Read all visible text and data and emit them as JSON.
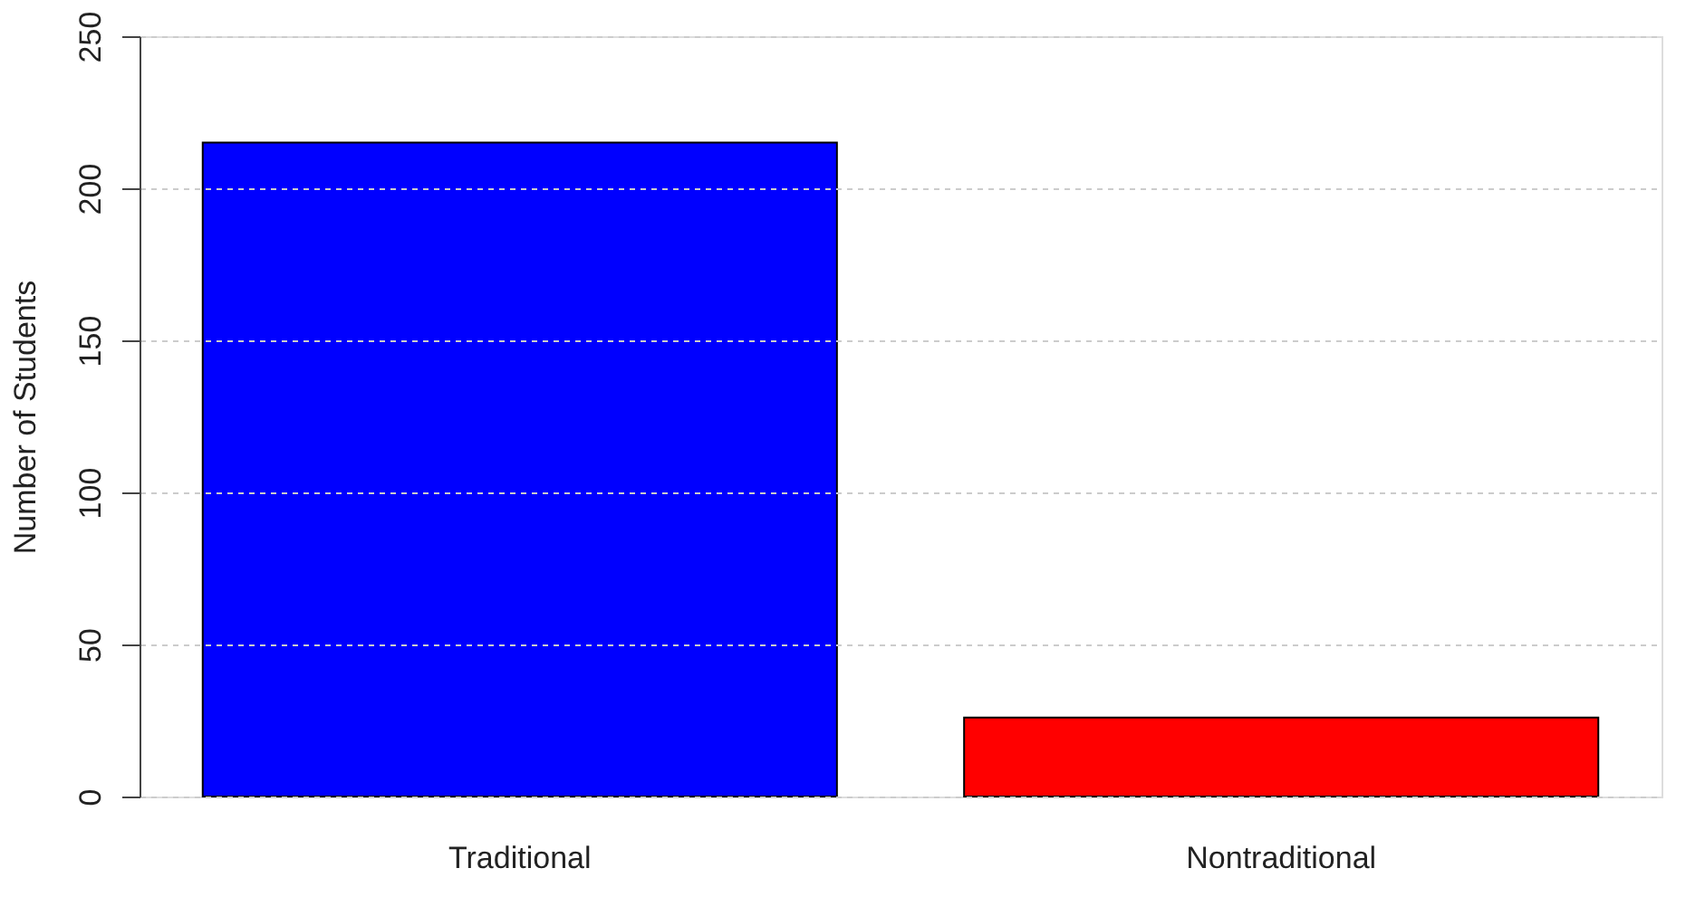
{
  "chart_data": {
    "type": "bar",
    "ylabel": "Number of Students",
    "categories": [
      "Traditional",
      "Nontraditional"
    ],
    "values": [
      215,
      26
    ],
    "colors": [
      "#0000ff",
      "#ff0000"
    ],
    "ylim": [
      0,
      250
    ],
    "yticks": [
      0,
      50,
      100,
      150,
      200,
      250
    ],
    "grid": "y"
  }
}
